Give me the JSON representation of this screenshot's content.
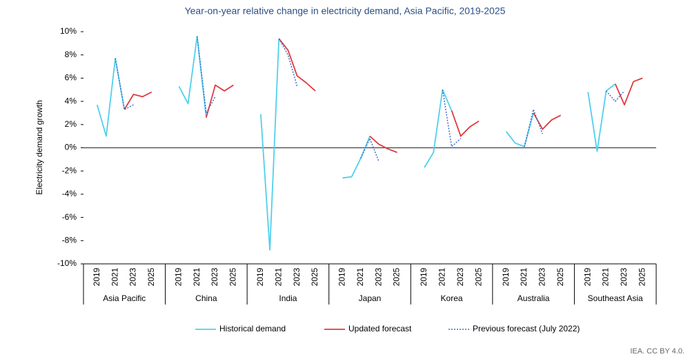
{
  "chart_data": {
    "type": "line",
    "title": "Year-on-year relative change in electricity demand, Asia Pacific, 2019-2025",
    "y_label": "Electricity demand growth",
    "source": "IEA. CC BY 4.0.",
    "groups": [
      "Asia Pacific",
      "China",
      "India",
      "Japan",
      "Korea",
      "Australia",
      "Southeast Asia"
    ],
    "categories": [
      "2019",
      null,
      "2021",
      null,
      "2023",
      null,
      "2025",
      "2019",
      null,
      "2021",
      null,
      "2023",
      null,
      "2025",
      "2019",
      null,
      "2021",
      null,
      "2023",
      null,
      "2025",
      "2019",
      null,
      "2021",
      null,
      "2023",
      null,
      "2025",
      "2019",
      null,
      "2021",
      null,
      "2023",
      null,
      "2025",
      "2019",
      null,
      "2021",
      null,
      "2023",
      null,
      "2025",
      "2019",
      null,
      "2021",
      null,
      "2023",
      null,
      "2025"
    ],
    "ylim": [
      -10,
      10
    ],
    "yticks": [
      {
        "value": -10,
        "label": "-10%"
      },
      {
        "value": -8,
        "label": "-8%"
      },
      {
        "value": -6,
        "label": "-6%"
      },
      {
        "value": -4,
        "label": "-4%"
      },
      {
        "value": -2,
        "label": "-2%"
      },
      {
        "value": 0,
        "label": "0%"
      },
      {
        "value": 2,
        "label": "2%"
      },
      {
        "value": 4,
        "label": "4%"
      },
      {
        "value": 6,
        "label": "6%"
      },
      {
        "value": 8,
        "label": "8%"
      },
      {
        "value": 10,
        "label": "10%"
      }
    ],
    "grid": false,
    "legend": "bottom",
    "series": [
      {
        "name": "Historical demand",
        "color": "#4fd0ec",
        "dash": "solid",
        "values": [
          3.7,
          1.0,
          7.7,
          3.3,
          null,
          null,
          null,
          5.3,
          3.8,
          9.6,
          2.6,
          null,
          null,
          null,
          2.9,
          -8.8,
          9.4,
          null,
          null,
          null,
          null,
          -2.6,
          -2.5,
          -0.9,
          1.0,
          null,
          null,
          null,
          -1.7,
          -0.4,
          5.0,
          3.2,
          null,
          null,
          null,
          1.4,
          0.4,
          0.1,
          3.0,
          null,
          null,
          null,
          4.8,
          -0.3,
          4.9,
          5.5,
          null,
          null,
          null
        ]
      },
      {
        "name": "Updated forecast",
        "color": "#e0393e",
        "dash": "solid",
        "values": [
          null,
          null,
          null,
          3.3,
          4.6,
          4.4,
          4.8,
          null,
          null,
          null,
          2.6,
          5.4,
          4.9,
          5.4,
          null,
          null,
          9.4,
          8.4,
          6.2,
          5.6,
          4.9,
          null,
          null,
          null,
          1.0,
          0.3,
          -0.1,
          -0.4,
          null,
          null,
          null,
          3.2,
          1.0,
          1.8,
          2.3,
          null,
          null,
          null,
          3.0,
          1.6,
          2.4,
          2.8,
          null,
          null,
          null,
          5.5,
          3.7,
          5.7,
          6.0
        ]
      },
      {
        "name": "Previous forecast (July 2022)",
        "color": "#3a6cc8",
        "dash": "dotted",
        "values": [
          null,
          null,
          7.7,
          3.3,
          3.7,
          null,
          null,
          null,
          null,
          9.6,
          3.0,
          4.4,
          null,
          null,
          null,
          null,
          9.4,
          8.0,
          5.3,
          null,
          null,
          null,
          null,
          -0.9,
          0.8,
          -1.2,
          null,
          null,
          null,
          null,
          5.0,
          0.1,
          0.8,
          null,
          null,
          null,
          null,
          0.1,
          3.3,
          1.2,
          null,
          null,
          null,
          null,
          4.9,
          4.0,
          4.9,
          null,
          null
        ]
      }
    ]
  }
}
